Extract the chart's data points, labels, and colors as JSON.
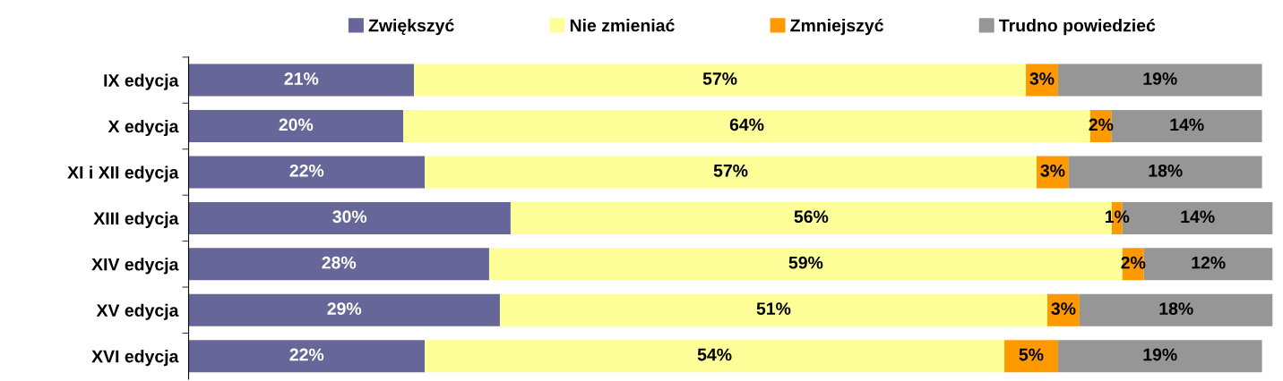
{
  "chart_data": {
    "type": "bar",
    "orientation": "horizontal",
    "stacked": true,
    "categories": [
      "IX edycja",
      "X edycja",
      "XI i XII edycja",
      "XIII edycja",
      "XIV edycja",
      "XV edycja",
      "XVI edycja"
    ],
    "series": [
      {
        "name": "Zwiększyć",
        "color": "#666699",
        "values": [
          21,
          20,
          22,
          30,
          28,
          29,
          22
        ],
        "value_labels": [
          "21%",
          "20%",
          "22%",
          "30%",
          "28%",
          "29%",
          "22%"
        ]
      },
      {
        "name": "Nie zmieniać",
        "color": "#ffff99",
        "values": [
          57,
          64,
          57,
          56,
          59,
          51,
          54
        ],
        "value_labels": [
          "57%",
          "64%",
          "57%",
          "56%",
          "59%",
          "51%",
          "54%"
        ]
      },
      {
        "name": "Zmniejszyć",
        "color": "#ff9900",
        "values": [
          3,
          2,
          3,
          1,
          2,
          3,
          5
        ],
        "value_labels": [
          "3%",
          "2%",
          "3%",
          "1%",
          "2%",
          "3%",
          "5%"
        ]
      },
      {
        "name": "Trudno powiedzieć",
        "color": "#969696",
        "values": [
          19,
          14,
          18,
          14,
          12,
          18,
          19
        ],
        "value_labels": [
          "19%",
          "14%",
          "18%",
          "14%",
          "12%",
          "18%",
          "19%"
        ]
      }
    ],
    "legend": "top",
    "grid": false
  }
}
